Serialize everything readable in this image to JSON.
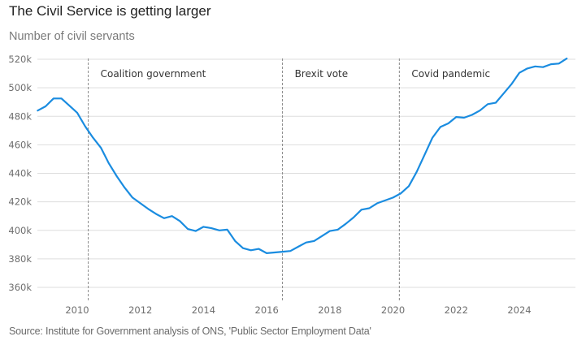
{
  "title": "The Civil Service is getting larger",
  "subtitle": "Number of civil servants",
  "source": "Source: Institute for Government analysis of ONS, 'Public Sector Employment Data'",
  "colors": {
    "line": "#1a8ce0",
    "grid": "#dddddd",
    "event_line": "#888888"
  },
  "chart_data": {
    "type": "line",
    "title": "The Civil Service is getting larger",
    "subtitle": "Number of civil servants",
    "xlabel": "",
    "ylabel": "Number of civil servants",
    "xlim": [
      2008.6,
      2025.7
    ],
    "ylim": [
      350000,
      522000
    ],
    "grid": true,
    "x_ticks": [
      2010,
      2012,
      2014,
      2016,
      2018,
      2020,
      2022,
      2024
    ],
    "x_tick_labels": [
      "2010",
      "2012",
      "2014",
      "2016",
      "2018",
      "2020",
      "2022",
      "2024"
    ],
    "y_ticks": [
      360000,
      380000,
      400000,
      420000,
      440000,
      460000,
      480000,
      500000,
      520000
    ],
    "y_tick_labels": [
      "360k",
      "380k",
      "400k",
      "420k",
      "440k",
      "460k",
      "480k",
      "500k",
      "520k"
    ],
    "annotations": [
      {
        "label": "Coalition government",
        "x": 2010.35
      },
      {
        "label": "Brexit vote",
        "x": 2016.5
      },
      {
        "label": "Covid pandemic",
        "x": 2020.2
      }
    ],
    "series": [
      {
        "name": "Civil servants",
        "x": [
          2008.75,
          2009.0,
          2009.25,
          2009.5,
          2009.75,
          2010.0,
          2010.25,
          2010.5,
          2010.75,
          2011.0,
          2011.25,
          2011.5,
          2011.75,
          2012.0,
          2012.25,
          2012.5,
          2012.75,
          2013.0,
          2013.25,
          2013.5,
          2013.75,
          2014.0,
          2014.25,
          2014.5,
          2014.75,
          2015.0,
          2015.25,
          2015.5,
          2015.75,
          2016.0,
          2016.25,
          2016.5,
          2016.75,
          2017.0,
          2017.25,
          2017.5,
          2017.75,
          2018.0,
          2018.25,
          2018.5,
          2018.75,
          2019.0,
          2019.25,
          2019.5,
          2019.75,
          2020.0,
          2020.25,
          2020.5,
          2020.75,
          2021.0,
          2021.25,
          2021.5,
          2021.75,
          2022.0,
          2022.25,
          2022.5,
          2022.75,
          2023.0,
          2023.25,
          2023.5,
          2023.75,
          2024.0,
          2024.25,
          2024.5,
          2024.75,
          2025.0,
          2025.25,
          2025.5
        ],
        "values": [
          484000,
          487000,
          492500,
          492500,
          487500,
          482500,
          473000,
          465000,
          458000,
          447000,
          438000,
          430000,
          423000,
          419000,
          415000,
          411500,
          408500,
          410000,
          406500,
          401000,
          399500,
          402500,
          401500,
          400000,
          400500,
          392500,
          387500,
          386000,
          387000,
          384000,
          384500,
          385000,
          385500,
          388500,
          391500,
          392500,
          396000,
          399500,
          400500,
          404500,
          409000,
          414500,
          415500,
          419000,
          421000,
          423000,
          426000,
          431000,
          441000,
          453000,
          465000,
          472500,
          475000,
          479500,
          479000,
          481000,
          484000,
          488500,
          489500,
          496000,
          502500,
          510500,
          513500,
          515000,
          514500,
          516500,
          517000,
          520500
        ]
      }
    ]
  }
}
